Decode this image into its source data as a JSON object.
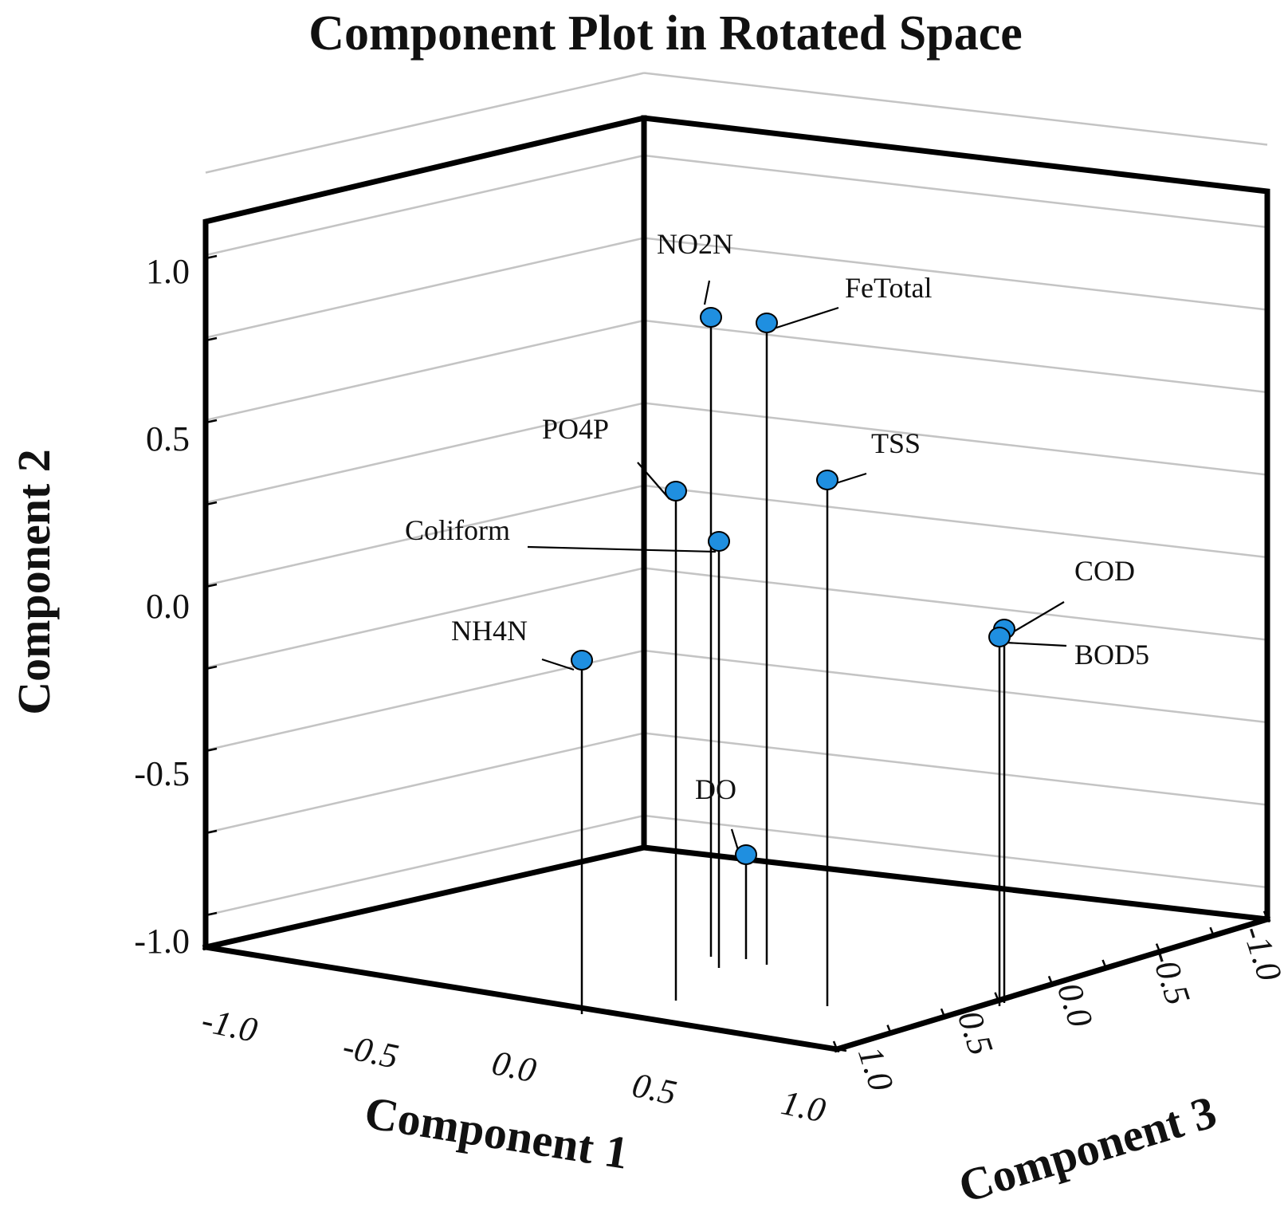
{
  "chart_data": {
    "type": "scatter",
    "title": "Component Plot in Rotated Space",
    "projection": "3d",
    "axes": {
      "x": {
        "label": "Component 1",
        "range": [
          -1.0,
          1.0
        ],
        "ticks": [
          "-1.0",
          "-0.5",
          "0.0",
          "0.5",
          "1.0"
        ]
      },
      "y": {
        "label": "Component 2",
        "range": [
          -1.0,
          1.0
        ],
        "ticks": [
          "1.0",
          "0.5",
          "0.0",
          "-0.5",
          "-1.0"
        ]
      },
      "z": {
        "label": "Component 3",
        "range": [
          -1.0,
          1.0
        ],
        "ticks": [
          "1.0",
          "0.5",
          "0.0",
          "-0.5",
          "-1.0"
        ]
      }
    },
    "grid": true,
    "marker_color": "#1f8fe0",
    "points": [
      {
        "label": "NO2N",
        "x": 0.1,
        "y": 0.83,
        "z": 0.2
      },
      {
        "label": "FeTotal",
        "x": 0.3,
        "y": 0.81,
        "z": 0.2
      },
      {
        "label": "PO4P",
        "x": 0.0,
        "y": 0.33,
        "z": 0.4
      },
      {
        "label": "TSS",
        "x": 0.5,
        "y": 0.36,
        "z": 0.2
      },
      {
        "label": "Coliform",
        "x": 0.1,
        "y": 0.18,
        "z": 0.2
      },
      {
        "label": "COD",
        "x": 0.92,
        "y": -0.08,
        "z": 0.4
      },
      {
        "label": "BOD5",
        "x": 0.91,
        "y": -0.1,
        "z": 0.4
      },
      {
        "label": "NH4N",
        "x": -0.5,
        "y": -0.17,
        "z": 0.3
      },
      {
        "label": "DO",
        "x": 0.2,
        "y": -0.75,
        "z": 0.2
      }
    ]
  }
}
